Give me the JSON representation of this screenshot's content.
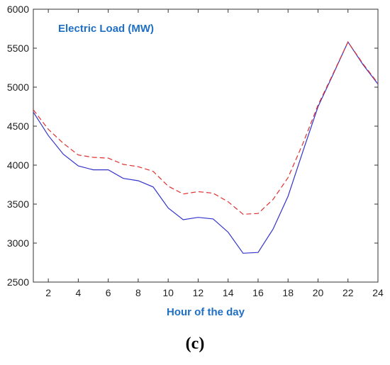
{
  "chart_data": {
    "type": "line",
    "title": "Electric Load (MW)",
    "xlabel": "Hour of the day",
    "ylabel": "",
    "xlim": [
      1,
      24
    ],
    "ylim": [
      2500,
      6000
    ],
    "xticks": [
      2,
      4,
      6,
      8,
      10,
      12,
      14,
      16,
      18,
      20,
      22,
      24
    ],
    "yticks": [
      2500,
      3000,
      3500,
      4000,
      4500,
      5000,
      5500,
      6000
    ],
    "grid": false,
    "x": [
      1,
      2,
      3,
      4,
      5,
      6,
      7,
      8,
      9,
      10,
      11,
      12,
      13,
      14,
      15,
      16,
      17,
      18,
      19,
      20,
      21,
      22,
      23,
      24
    ],
    "series": [
      {
        "color": "#3333cc",
        "style": "solid",
        "values": [
          4680,
          4380,
          4140,
          3990,
          3940,
          3940,
          3830,
          3800,
          3720,
          3450,
          3300,
          3330,
          3310,
          3140,
          2870,
          2880,
          3180,
          3600,
          4180,
          4750,
          5160,
          5580,
          5290,
          5040
        ]
      },
      {
        "color": "#e03030",
        "style": "dashed",
        "values": [
          4710,
          4460,
          4280,
          4130,
          4100,
          4090,
          4010,
          3980,
          3920,
          3730,
          3630,
          3660,
          3640,
          3530,
          3370,
          3380,
          3560,
          3840,
          4280,
          4770,
          5170,
          5580,
          5300,
          5050
        ]
      }
    ],
    "title_color": "#1f6fc5",
    "caption": "(c)"
  }
}
